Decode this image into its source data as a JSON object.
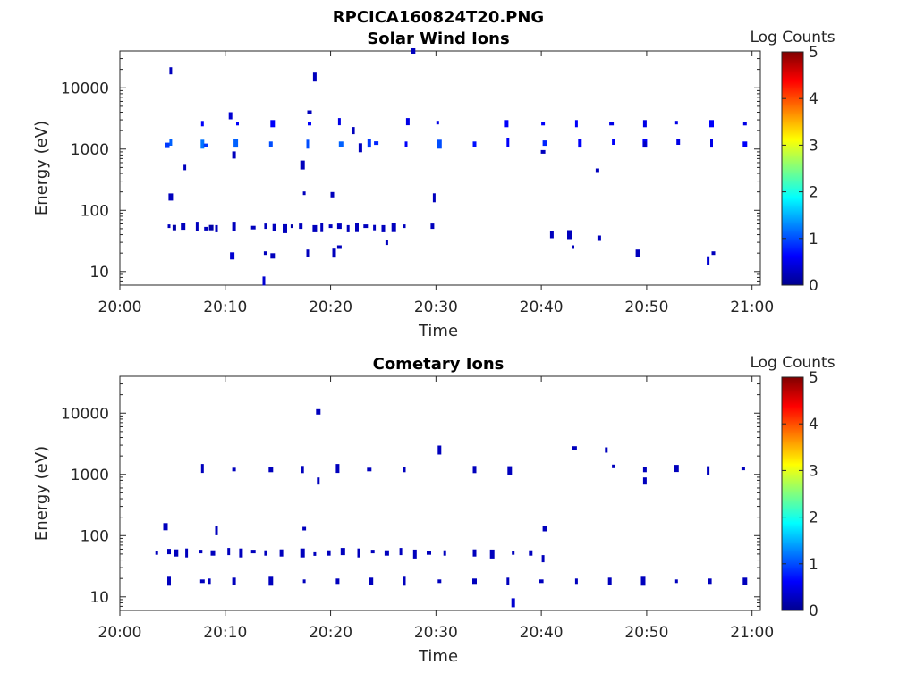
{
  "figure": {
    "title": "RPCICA160824T20.PNG"
  },
  "colorbar": {
    "label": "Log Counts",
    "ticks": [
      "0",
      "1",
      "2",
      "3",
      "4",
      "5"
    ]
  },
  "chart_data": [
    {
      "type": "heatmap",
      "title": "Solar Wind Ions",
      "xlabel": "Time",
      "ylabel": "Energy (eV)",
      "xlim": [
        "20:00",
        "21:00"
      ],
      "xticks": [
        "20:00",
        "20:10",
        "20:20",
        "20:30",
        "20:40",
        "20:50",
        "21:00"
      ],
      "yscale": "log",
      "ylim": [
        6,
        40000
      ],
      "yticks": [
        "10",
        "100",
        "1000",
        "10000"
      ],
      "zlim": [
        0,
        5
      ],
      "points": [
        [
          "20:04:40",
          55,
          0.3
        ],
        [
          "20:05:10",
          52,
          0.2
        ],
        [
          "20:06:00",
          55,
          0.3
        ],
        [
          "20:07:20",
          55,
          0.3
        ],
        [
          "20:08:10",
          50,
          0.3
        ],
        [
          "20:08:40",
          52,
          0.2
        ],
        [
          "20:09:10",
          50,
          0.3
        ],
        [
          "20:10:50",
          55,
          0.3
        ],
        [
          "20:12:40",
          52,
          0.3
        ],
        [
          "20:13:50",
          55,
          0.3
        ],
        [
          "20:14:40",
          52,
          0.3
        ],
        [
          "20:15:40",
          50,
          0.3
        ],
        [
          "20:16:20",
          55,
          0.2
        ],
        [
          "20:17:10",
          55,
          0.3
        ],
        [
          "20:18:30",
          50,
          0.3
        ],
        [
          "20:19:10",
          52,
          0.3
        ],
        [
          "20:20:00",
          55,
          0.3
        ],
        [
          "20:20:50",
          55,
          0.3
        ],
        [
          "20:21:40",
          50,
          0.3
        ],
        [
          "20:22:30",
          52,
          0.3
        ],
        [
          "20:23:20",
          55,
          0.3
        ],
        [
          "20:24:10",
          52,
          0.3
        ],
        [
          "20:25:00",
          50,
          0.3
        ],
        [
          "20:26:00",
          52,
          0.3
        ],
        [
          "20:27:00",
          55,
          0.3
        ],
        [
          "20:29:40",
          55,
          0.3
        ],
        [
          "20:10:40",
          18,
          0.4
        ],
        [
          "20:13:40",
          7,
          0.4
        ],
        [
          "20:13:50",
          20,
          0.3
        ],
        [
          "20:14:30",
          18,
          0.3
        ],
        [
          "20:17:50",
          20,
          0.3
        ],
        [
          "20:20:20",
          20,
          0.3
        ],
        [
          "20:20:50",
          25,
          0.3
        ],
        [
          "20:25:20",
          30,
          0.3
        ],
        [
          "20:41:00",
          40,
          0.3
        ],
        [
          "20:42:40",
          40,
          0.3
        ],
        [
          "20:43:00",
          25,
          0.3
        ],
        [
          "20:45:30",
          35,
          0.3
        ],
        [
          "20:49:10",
          20,
          0.3
        ],
        [
          "20:55:50",
          15,
          0.4
        ],
        [
          "20:56:20",
          20,
          0.3
        ],
        [
          "20:04:30",
          1150,
          0.9
        ],
        [
          "20:04:50",
          1300,
          1.1
        ],
        [
          "20:07:50",
          1200,
          1.2
        ],
        [
          "20:08:10",
          1150,
          0.9
        ],
        [
          "20:07:50",
          2600,
          0.6
        ],
        [
          "20:10:30",
          3500,
          0.4
        ],
        [
          "20:11:00",
          1250,
          1.1
        ],
        [
          "20:11:10",
          2600,
          0.6
        ],
        [
          "20:14:20",
          1200,
          1.0
        ],
        [
          "20:14:30",
          2600,
          0.6
        ],
        [
          "20:17:50",
          1200,
          1.0
        ],
        [
          "20:18:00",
          2600,
          0.6
        ],
        [
          "20:21:00",
          1200,
          1.1
        ],
        [
          "20:20:50",
          2800,
          0.5
        ],
        [
          "20:23:40",
          1250,
          0.9
        ],
        [
          "20:24:20",
          1250,
          0.8
        ],
        [
          "20:27:10",
          1200,
          0.6
        ],
        [
          "20:27:20",
          2800,
          0.5
        ],
        [
          "20:30:20",
          1200,
          1.0
        ],
        [
          "20:30:10",
          2700,
          0.5
        ],
        [
          "20:33:40",
          1200,
          0.7
        ],
        [
          "20:36:40",
          2600,
          0.6
        ],
        [
          "20:36:50",
          1300,
          0.6
        ],
        [
          "20:40:10",
          2600,
          0.6
        ],
        [
          "20:40:20",
          1250,
          0.8
        ],
        [
          "20:43:20",
          2600,
          0.6
        ],
        [
          "20:43:40",
          1250,
          0.6
        ],
        [
          "20:46:40",
          2600,
          0.5
        ],
        [
          "20:46:50",
          1300,
          0.6
        ],
        [
          "20:49:50",
          2600,
          0.5
        ],
        [
          "20:49:50",
          1250,
          0.6
        ],
        [
          "20:52:50",
          2700,
          0.5
        ],
        [
          "20:53:00",
          1300,
          0.5
        ],
        [
          "20:56:10",
          2600,
          0.6
        ],
        [
          "20:56:10",
          1250,
          0.5
        ],
        [
          "20:59:20",
          2600,
          0.5
        ],
        [
          "20:59:20",
          1200,
          0.6
        ],
        [
          "20:04:50",
          19000,
          0.3
        ],
        [
          "20:18:30",
          15000,
          0.3
        ],
        [
          "20:18:00",
          4000,
          0.3
        ],
        [
          "20:06:10",
          500,
          0.3
        ],
        [
          "20:10:50",
          800,
          0.3
        ],
        [
          "20:17:20",
          550,
          0.3
        ],
        [
          "20:17:30",
          190,
          0.3
        ],
        [
          "20:20:10",
          180,
          0.3
        ],
        [
          "20:04:50",
          165,
          0.3
        ],
        [
          "20:29:50",
          160,
          0.3
        ],
        [
          "20:45:20",
          450,
          0.3
        ],
        [
          "20:27:50",
          40000,
          0.3
        ],
        [
          "20:22:10",
          2000,
          0.3
        ],
        [
          "20:22:50",
          1050,
          0.3
        ],
        [
          "20:40:10",
          900,
          0.3
        ],
        [
          "20:49:50",
          1200,
          0.3
        ]
      ]
    },
    {
      "type": "heatmap",
      "title": "Cometary Ions",
      "xlabel": "Time",
      "ylabel": "Energy (eV)",
      "xlim": [
        "20:00",
        "21:00"
      ],
      "xticks": [
        "20:00",
        "20:10",
        "20:20",
        "20:30",
        "20:40",
        "20:50",
        "21:00"
      ],
      "yscale": "log",
      "ylim": [
        6,
        40000
      ],
      "yticks": [
        "10",
        "100",
        "1000",
        "10000"
      ],
      "zlim": [
        0,
        5
      ],
      "points": [
        [
          "20:03:30",
          52,
          0.3
        ],
        [
          "20:04:40",
          55,
          0.3
        ],
        [
          "20:05:20",
          52,
          0.3
        ],
        [
          "20:06:20",
          52,
          0.3
        ],
        [
          "20:07:40",
          55,
          0.3
        ],
        [
          "20:08:50",
          52,
          0.3
        ],
        [
          "20:10:20",
          55,
          0.3
        ],
        [
          "20:11:30",
          52,
          0.3
        ],
        [
          "20:12:40",
          55,
          0.3
        ],
        [
          "20:13:50",
          52,
          0.3
        ],
        [
          "20:15:20",
          52,
          0.3
        ],
        [
          "20:17:20",
          52,
          0.3
        ],
        [
          "20:18:30",
          50,
          0.3
        ],
        [
          "20:19:50",
          52,
          0.3
        ],
        [
          "20:21:10",
          55,
          0.3
        ],
        [
          "20:22:40",
          52,
          0.3
        ],
        [
          "20:24:00",
          55,
          0.3
        ],
        [
          "20:25:20",
          52,
          0.3
        ],
        [
          "20:26:40",
          55,
          0.3
        ],
        [
          "20:28:00",
          50,
          0.3
        ],
        [
          "20:29:20",
          52,
          0.3
        ],
        [
          "20:30:50",
          52,
          0.3
        ],
        [
          "20:33:40",
          52,
          0.3
        ],
        [
          "20:35:20",
          50,
          0.3
        ],
        [
          "20:37:20",
          52,
          0.3
        ],
        [
          "20:39:00",
          52,
          0.3
        ],
        [
          "20:04:20",
          140,
          0.3
        ],
        [
          "20:09:10",
          120,
          0.3
        ],
        [
          "20:17:30",
          130,
          0.3
        ],
        [
          "20:40:20",
          130,
          0.3
        ],
        [
          "20:40:10",
          42,
          0.3
        ],
        [
          "20:04:40",
          18,
          0.3
        ],
        [
          "20:07:50",
          18,
          0.3
        ],
        [
          "20:08:30",
          18,
          0.3
        ],
        [
          "20:10:50",
          18,
          0.3
        ],
        [
          "20:14:20",
          18,
          0.3
        ],
        [
          "20:17:30",
          18,
          0.3
        ],
        [
          "20:20:40",
          18,
          0.3
        ],
        [
          "20:23:50",
          18,
          0.3
        ],
        [
          "20:27:00",
          18,
          0.3
        ],
        [
          "20:30:20",
          18,
          0.3
        ],
        [
          "20:33:40",
          18,
          0.3
        ],
        [
          "20:36:50",
          18,
          0.3
        ],
        [
          "20:37:20",
          8,
          0.4
        ],
        [
          "20:40:00",
          18,
          0.3
        ],
        [
          "20:43:20",
          18,
          0.3
        ],
        [
          "20:46:30",
          18,
          0.3
        ],
        [
          "20:49:40",
          18,
          0.3
        ],
        [
          "20:52:50",
          18,
          0.3
        ],
        [
          "20:56:00",
          18,
          0.3
        ],
        [
          "20:59:20",
          18,
          0.3
        ],
        [
          "20:07:50",
          1250,
          0.3
        ],
        [
          "20:10:50",
          1200,
          0.3
        ],
        [
          "20:14:20",
          1200,
          0.3
        ],
        [
          "20:17:20",
          1200,
          0.3
        ],
        [
          "20:20:40",
          1250,
          0.3
        ],
        [
          "20:23:40",
          1200,
          0.3
        ],
        [
          "20:27:00",
          1200,
          0.3
        ],
        [
          "20:33:40",
          1200,
          0.3
        ],
        [
          "20:37:00",
          1150,
          0.3
        ],
        [
          "20:46:50",
          1350,
          0.3
        ],
        [
          "20:49:50",
          1200,
          0.3
        ],
        [
          "20:52:50",
          1250,
          0.3
        ],
        [
          "20:55:50",
          1150,
          0.3
        ],
        [
          "20:59:10",
          1250,
          0.3
        ],
        [
          "20:18:50",
          10500,
          0.3
        ],
        [
          "20:18:50",
          780,
          0.3
        ],
        [
          "20:30:20",
          2500,
          0.3
        ],
        [
          "20:43:10",
          2700,
          0.3
        ],
        [
          "20:46:10",
          2500,
          0.3
        ],
        [
          "20:49:50",
          780,
          0.3
        ]
      ]
    }
  ]
}
